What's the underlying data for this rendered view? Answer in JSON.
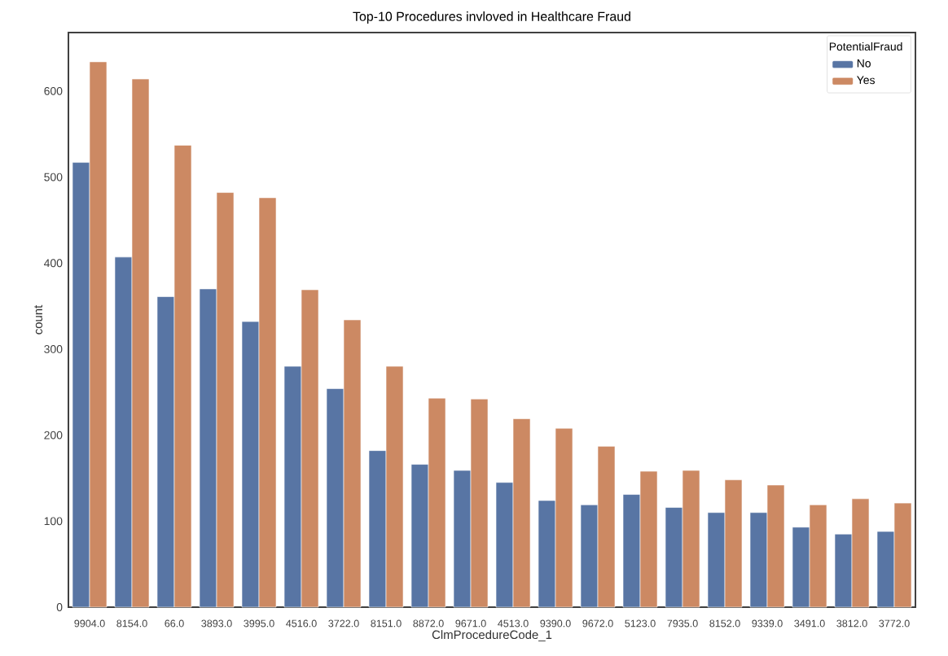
{
  "chart_data": {
    "type": "bar",
    "title": "Top-10 Procedures invloved in Healthcare Fraud",
    "xlabel": "ClmProcedureCode_1",
    "ylabel": "count",
    "legend_title": "PotentialFraud",
    "categories": [
      "9904.0",
      "8154.0",
      "66.0",
      "3893.0",
      "3995.0",
      "4516.0",
      "3722.0",
      "8151.0",
      "8872.0",
      "9671.0",
      "4513.0",
      "9390.0",
      "9672.0",
      "5123.0",
      "7935.0",
      "8152.0",
      "9339.0",
      "3491.0",
      "3812.0",
      "3772.0"
    ],
    "series": [
      {
        "name": "No",
        "color": "#5875a4",
        "values": [
          517,
          407,
          361,
          370,
          332,
          280,
          254,
          182,
          166,
          159,
          145,
          124,
          119,
          131,
          116,
          110,
          110,
          93,
          85,
          88
        ]
      },
      {
        "name": "Yes",
        "color": "#cc8963",
        "values": [
          634,
          614,
          537,
          482,
          476,
          369,
          334,
          280,
          243,
          242,
          219,
          208,
          187,
          158,
          159,
          148,
          142,
          119,
          126,
          121
        ]
      }
    ],
    "ylim": [
      0,
      668
    ],
    "yticks": [
      0,
      100,
      200,
      300,
      400,
      500,
      600
    ],
    "grid": false,
    "legend": "top right"
  }
}
